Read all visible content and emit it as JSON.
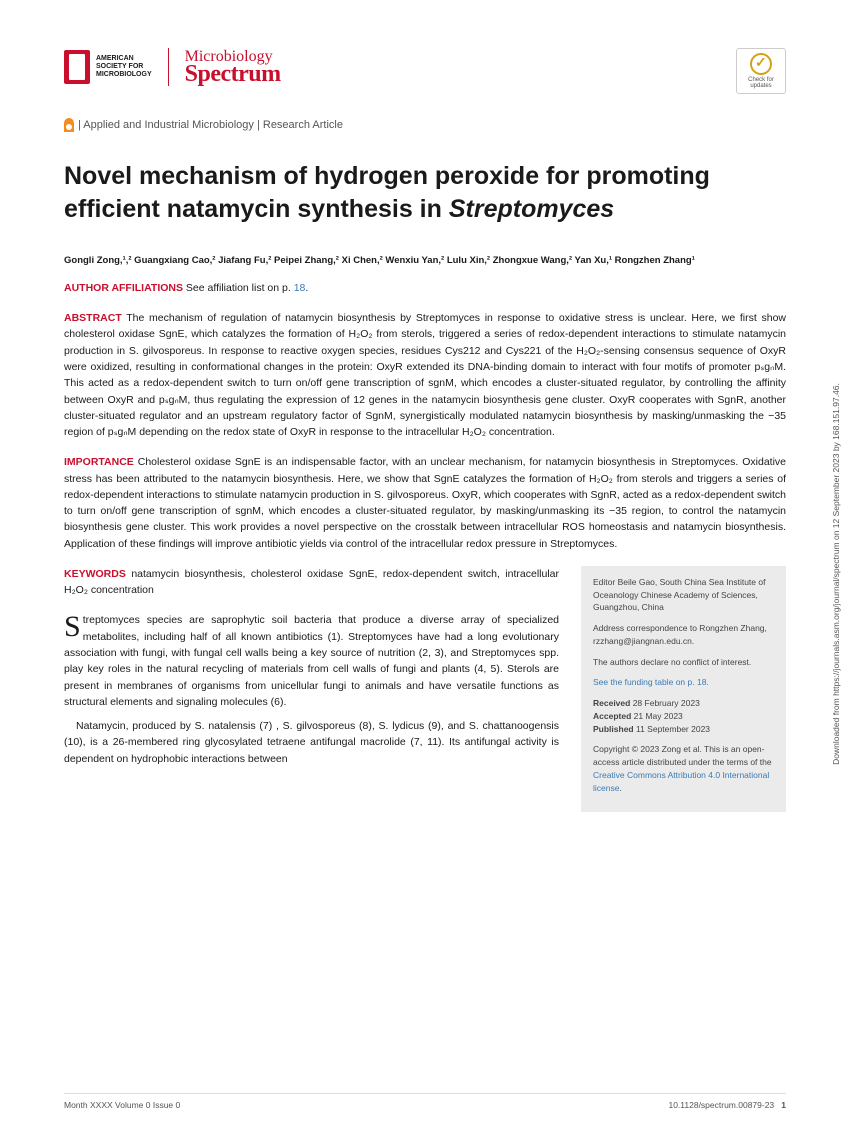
{
  "header": {
    "asm_text": "AMERICAN\nSOCIETY FOR\nMICROBIOLOGY",
    "journal_top": "Microbiology",
    "journal_bot": "Spectrum",
    "check_text": "Check for\nupdates"
  },
  "category": "| Applied and Industrial Microbiology | Research Article",
  "title": "Novel mechanism of hydrogen peroxide for promoting efficient natamycin synthesis in ",
  "title_em": "Streptomyces",
  "authors": "Gongli Zong,¹,² Guangxiang Cao,² Jiafang Fu,² Peipei Zhang,² Xi Chen,² Wenxiu Yan,² Lulu Xin,² Zhongxue Wang,² Yan Xu,¹ Rongzhen Zhang¹",
  "affil_label": "AUTHOR AFFILIATIONS",
  "affil_text": " See affiliation list on p. ",
  "affil_link": "18",
  "affil_end": ".",
  "abstract_label": "ABSTRACT",
  "abstract": " The mechanism of regulation of natamycin biosynthesis by Streptomyces in response to oxidative stress is unclear. Here, we first show cholesterol oxidase SgnE, which catalyzes the formation of H₂O₂ from sterols, triggered a series of redox-dependent interactions to stimulate natamycin production in S. gilvosporeus. In response to reactive oxygen species, residues Cys212 and Cys221 of the H₂O₂-sensing consensus sequence of OxyR were oxidized, resulting in conformational changes in the protein: OxyR extended its DNA-binding domain to interact with four motifs of promoter pₛgₙM. This acted as a redox-dependent switch to turn on/off gene transcription of sgnM, which encodes a cluster-situated regulator, by controlling the affinity between OxyR and pₛgₙM, thus regulating the expression of 12 genes in the natamycin biosynthesis gene cluster. OxyR cooperates with SgnR, another cluster-situated regulator and an upstream regulatory factor of SgnM, synergistically modulated natamycin biosynthesis by masking/unmasking the −35 region of pₛgₙM depending on the redox state of OxyR in response to the intracellular H₂O₂ concentration.",
  "importance_label": "IMPORTANCE",
  "importance": " Cholesterol oxidase SgnE is an indispensable factor, with an unclear mechanism, for natamycin biosynthesis in Streptomyces. Oxidative stress has been attributed to the natamycin biosynthesis. Here, we show that SgnE catalyzes the formation of H₂O₂ from sterols and triggers a series of redox-dependent interactions to stimulate natamycin production in S. gilvosporeus. OxyR, which cooperates with SgnR, acted as a redox-dependent switch to turn on/off gene transcription of sgnM, which encodes a cluster-situated regulator, by masking/unmasking its −35 region, to control the natamycin biosynthesis gene cluster. This work provides a novel perspective on the crosstalk between intracellular ROS homeostasis and natamycin biosynthesis. Application of these findings will improve antibiotic yields via control of the intracellular redox pressure in Streptomyces.",
  "keywords_label": "KEYWORDS",
  "keywords": " natamycin biosynthesis, cholesterol oxidase SgnE, redox-dependent switch, intracellular H₂O₂ concentration",
  "body1_first": "S",
  "body1": "treptomyces species are saprophytic soil bacteria that produce a diverse array of specialized metabolites, including half of all known antibiotics (1). Streptomyces have had a long evolutionary association with fungi, with fungal cell walls being a key source of nutrition (2, 3), and Streptomyces spp. play key roles in the natural recycling of materials from cell walls of fungi and plants (4, 5). Sterols are present in membranes of organisms from unicellular fungi to animals and have versatile functions as structural elements and signaling molecules (6).",
  "body2": "Natamycin, produced by S. natalensis (7) , S. gilvosporeus (8), S. lydicus (9), and S. chattanoogensis (10), is a 26-membered ring glycosylated tetraene antifungal macrolide (7, 11). Its antifungal activity is dependent on hydrophobic interactions between",
  "sidebar": {
    "editor": "Editor Beile Gao, South China Sea Institute of Oceanology Chinese Academy of Sciences, Guangzhou, China",
    "correspondence": "Address correspondence to Rongzhen Zhang, rzzhang@jiangnan.edu.cn.",
    "conflict": "The authors declare no conflict of interest.",
    "funding": "See the funding table on p. 18.",
    "received_l": "Received",
    "received": " 28 February 2023",
    "accepted_l": "Accepted",
    "accepted": " 21 May 2023",
    "published_l": "Published",
    "published": " 11 September 2023",
    "copyright": "Copyright © 2023 Zong et al. This is an open-access article distributed under the terms of the ",
    "license": "Creative Commons Attribution 4.0 International license",
    "copyright_end": "."
  },
  "footer": {
    "left": "Month XXXX   Volume 0   Issue 0",
    "right": "10.1128/spectrum.00879-23",
    "page": "1"
  },
  "side_text": "Downloaded from https://journals.asm.org/journal/spectrum on 12 September 2023 by 168.151.97.46."
}
